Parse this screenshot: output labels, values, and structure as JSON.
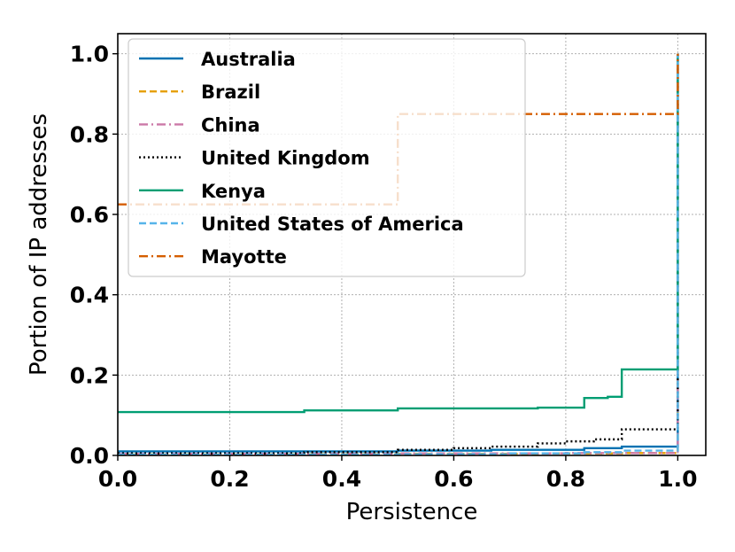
{
  "chart_data": {
    "type": "line",
    "title": "",
    "xlabel": "Persistence",
    "ylabel": "Portion of IP addresses",
    "xlim": [
      0.0,
      1.05
    ],
    "ylim": [
      0.0,
      1.05
    ],
    "xticks": [
      "0.0",
      "0.2",
      "0.4",
      "0.6",
      "0.8",
      "1.0"
    ],
    "yticks": [
      "0.0",
      "0.2",
      "0.4",
      "0.6",
      "0.8",
      "1.0"
    ],
    "grid": true,
    "legend_position": "top-left",
    "series": [
      {
        "name": "Australia",
        "color": "#0072b2",
        "style": "solid",
        "points": [
          [
            0.0,
            0.01
          ],
          [
            0.5,
            0.012
          ],
          [
            0.667,
            0.014
          ],
          [
            0.833,
            0.018
          ],
          [
            0.9,
            0.022
          ],
          [
            1.0,
            0.022
          ],
          [
            1.0,
            1.0
          ]
        ]
      },
      {
        "name": "Brazil",
        "color": "#e69f00",
        "style": "dashed",
        "points": [
          [
            0.0,
            0.003
          ],
          [
            0.5,
            0.004
          ],
          [
            0.75,
            0.005
          ],
          [
            0.9,
            0.006
          ],
          [
            1.0,
            0.006
          ],
          [
            1.0,
            1.0
          ]
        ]
      },
      {
        "name": "China",
        "color": "#cc79a7",
        "style": "dashdot",
        "points": [
          [
            0.0,
            0.004
          ],
          [
            0.5,
            0.005
          ],
          [
            0.8,
            0.006
          ],
          [
            1.0,
            0.006
          ],
          [
            1.0,
            1.0
          ]
        ]
      },
      {
        "name": "United Kingdom",
        "color": "#000000",
        "style": "dotted",
        "points": [
          [
            0.0,
            0.005
          ],
          [
            0.333,
            0.008
          ],
          [
            0.5,
            0.014
          ],
          [
            0.6,
            0.018
          ],
          [
            0.667,
            0.022
          ],
          [
            0.75,
            0.03
          ],
          [
            0.8,
            0.035
          ],
          [
            0.85,
            0.04
          ],
          [
            0.9,
            0.065
          ],
          [
            1.0,
            0.065
          ],
          [
            1.0,
            1.0
          ]
        ]
      },
      {
        "name": "Kenya",
        "color": "#009e73",
        "style": "solid",
        "points": [
          [
            0.0,
            0.108
          ],
          [
            0.333,
            0.112
          ],
          [
            0.5,
            0.117
          ],
          [
            0.667,
            0.117
          ],
          [
            0.75,
            0.119
          ],
          [
            0.833,
            0.143
          ],
          [
            0.875,
            0.146
          ],
          [
            0.9,
            0.214
          ],
          [
            1.0,
            0.214
          ],
          [
            1.0,
            1.0
          ]
        ]
      },
      {
        "name": "United States of America",
        "color": "#56b4e9",
        "style": "dashed",
        "points": [
          [
            0.0,
            0.002
          ],
          [
            0.5,
            0.003
          ],
          [
            0.7,
            0.005
          ],
          [
            0.833,
            0.008
          ],
          [
            0.9,
            0.012
          ],
          [
            1.0,
            0.012
          ],
          [
            1.0,
            1.0
          ]
        ]
      },
      {
        "name": "Mayotte",
        "color": "#d55e00",
        "style": "dashdot",
        "points": [
          [
            0.0,
            0.625
          ],
          [
            0.5,
            0.625
          ],
          [
            0.5,
            0.85
          ],
          [
            1.0,
            0.85
          ],
          [
            1.0,
            1.0
          ]
        ]
      }
    ]
  }
}
